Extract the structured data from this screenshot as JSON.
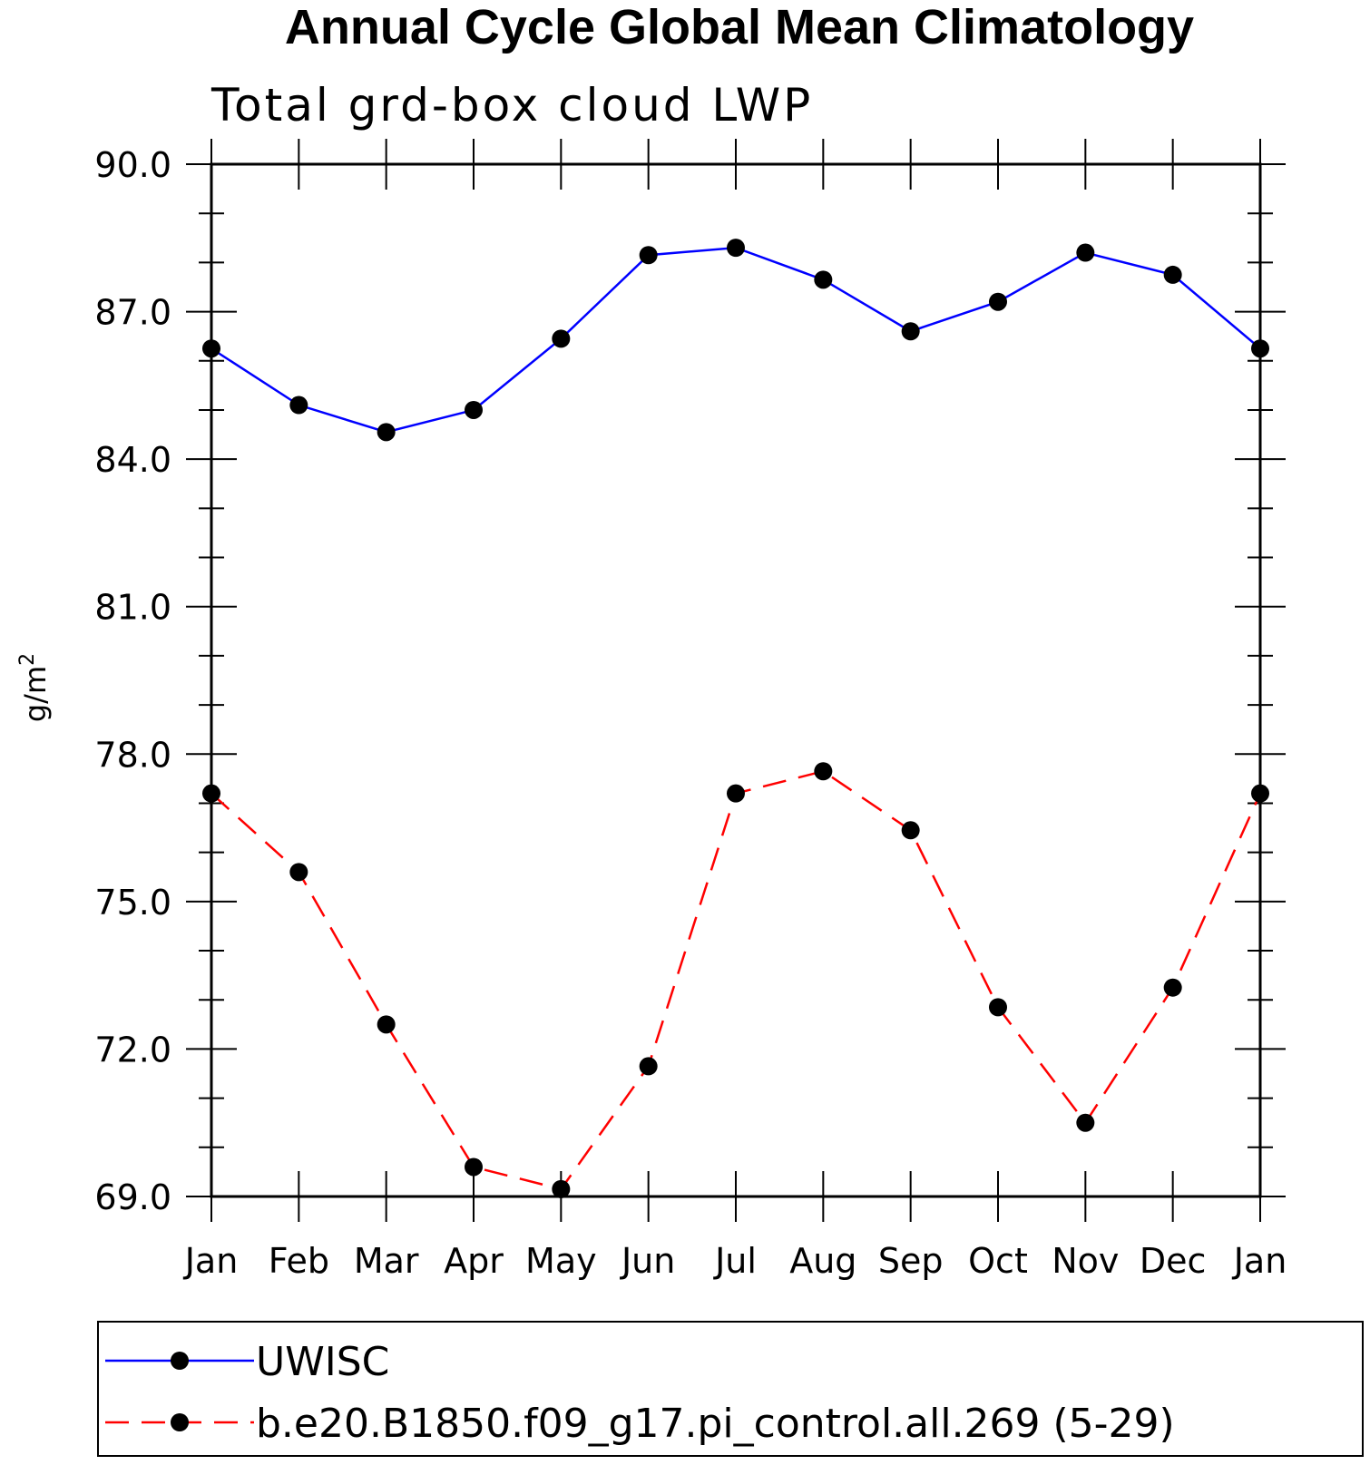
{
  "chart_data": {
    "type": "line",
    "title": "Annual Cycle Global Mean Climatology",
    "subtitle": "Total grd-box cloud LWP",
    "xlabel": "",
    "ylabel_base": "g/m",
    "ylabel_sup": "2",
    "categories": [
      "Jan",
      "Feb",
      "Mar",
      "Apr",
      "May",
      "Jun",
      "Jul",
      "Aug",
      "Sep",
      "Oct",
      "Nov",
      "Dec",
      "Jan"
    ],
    "ylim": [
      69.0,
      90.0
    ],
    "yticks": [
      "90.0",
      "87.0",
      "84.0",
      "81.0",
      "78.0",
      "75.0",
      "72.0",
      "69.0"
    ],
    "grid": false,
    "series": [
      {
        "name": "UWISC",
        "color": "#0000ff",
        "line_style": "solid",
        "values": [
          86.25,
          85.1,
          84.55,
          85.0,
          86.45,
          88.15,
          88.3,
          87.65,
          86.6,
          87.2,
          88.2,
          87.75,
          86.25
        ]
      },
      {
        "name": "b.e20.B1850.f09_g17.pi_control.all.269 (5-29)",
        "color": "#ff0000",
        "line_style": "dashed",
        "values": [
          77.2,
          75.6,
          72.5,
          69.6,
          69.15,
          71.65,
          77.2,
          77.65,
          76.45,
          72.85,
          70.5,
          73.25,
          77.2
        ]
      }
    ],
    "marker_color": "#000000",
    "legend_position": "bottom"
  }
}
